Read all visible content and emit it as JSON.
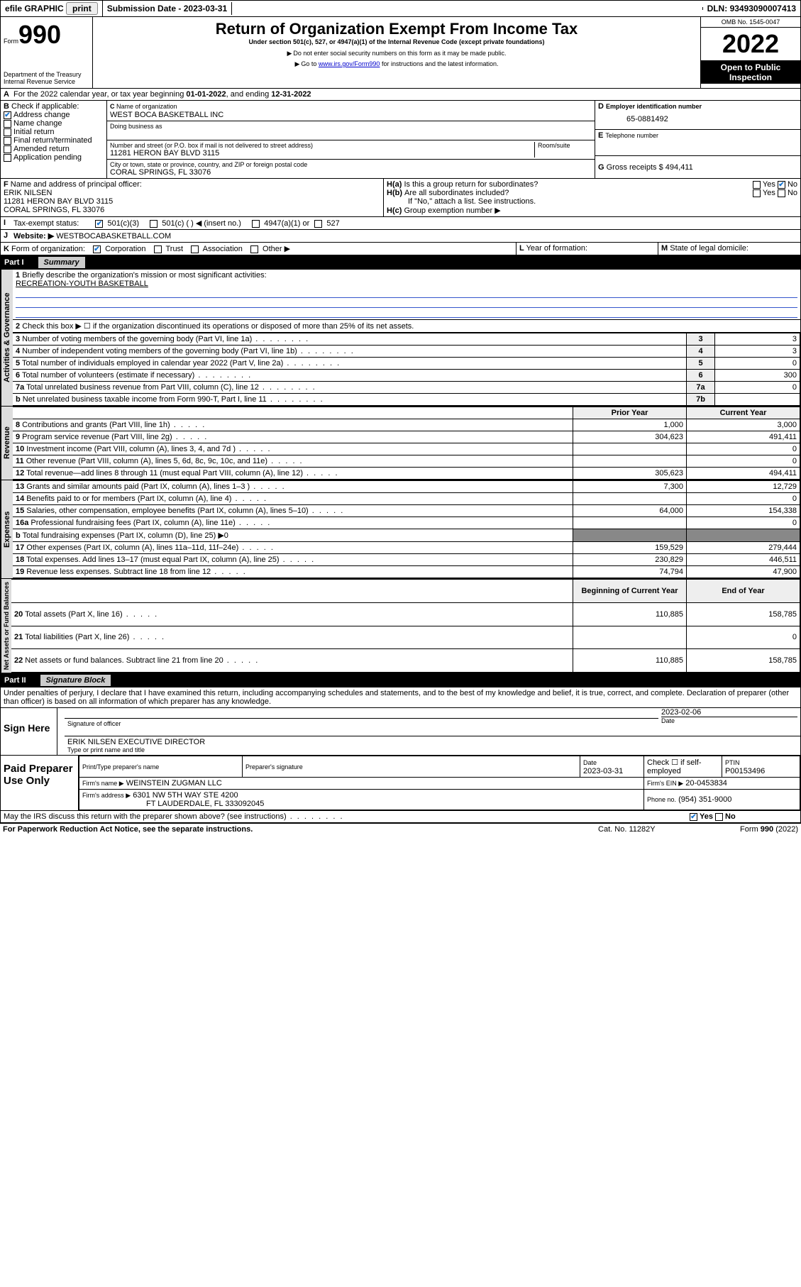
{
  "topbar": {
    "efile": "efile GRAPHIC",
    "print": "print",
    "sub_label": "Submission Date - ",
    "sub_date": "2023-03-31",
    "dln_label": "DLN: ",
    "dln": "93493090007413"
  },
  "header": {
    "form_prefix": "Form",
    "form_num": "990",
    "dept": "Department of the Treasury",
    "irs": "Internal Revenue Service",
    "title": "Return of Organization Exempt From Income Tax",
    "subtitle": "Under section 501(c), 527, or 4947(a)(1) of the Internal Revenue Code (except private foundations)",
    "note1": "Do not enter social security numbers on this form as it may be made public.",
    "note2_pre": "Go to ",
    "note2_link": "www.irs.gov/Form990",
    "note2_post": " for instructions and the latest information.",
    "omb": "OMB No. 1545-0047",
    "year": "2022",
    "open": "Open to Public Inspection"
  },
  "A": {
    "text_pre": "For the 2022 calendar year, or tax year beginning ",
    "begin": "01-01-2022",
    "mid": ", and ending ",
    "end": "12-31-2022"
  },
  "B": {
    "label": "Check if applicable:",
    "opts": [
      "Address change",
      "Name change",
      "Initial return",
      "Final return/terminated",
      "Amended return",
      "Application pending"
    ],
    "checked_idx": 0
  },
  "C": {
    "name_label": "Name of organization",
    "name": "WEST BOCA BASKETBALL INC",
    "dba_label": "Doing business as",
    "addr_label": "Number and street (or P.O. box if mail is not delivered to street address)",
    "room_label": "Room/suite",
    "addr": "11281 HERON BAY BLVD 3115",
    "city_label": "City or town, state or province, country, and ZIP or foreign postal code",
    "city": "CORAL SPRINGS, FL  33076"
  },
  "D": {
    "label": "Employer identification number",
    "value": "65-0881492"
  },
  "E": {
    "label": "Telephone number",
    "value": ""
  },
  "G": {
    "label": "Gross receipts $",
    "value": "494,411"
  },
  "F": {
    "label": "Name and address of principal officer:",
    "name": "ERIK NILSEN",
    "addr1": "11281 HERON BAY BLVD 3115",
    "addr2": "CORAL SPRINGS, FL  33076"
  },
  "H": {
    "a": "Is this a group return for subordinates?",
    "b": "Are all subordinates included?",
    "b_note": "If \"No,\" attach a list. See instructions.",
    "c": "Group exemption number ▶",
    "yes": "Yes",
    "no": "No"
  },
  "I": {
    "label": "Tax-exempt status:",
    "opts": [
      "501(c)(3)",
      "501(c) (  ) ◀ (insert no.)",
      "4947(a)(1) or",
      "527"
    ]
  },
  "J": {
    "label": "Website: ▶",
    "value": "WESTBOCABASKETBALL.COM"
  },
  "K": {
    "label": "Form of organization:",
    "opts": [
      "Corporation",
      "Trust",
      "Association",
      "Other ▶"
    ]
  },
  "L": {
    "label": "Year of formation:",
    "value": ""
  },
  "M": {
    "label": "State of legal domicile:",
    "value": ""
  },
  "partI": {
    "title": "Summary",
    "q1_label": "Briefly describe the organization's mission or most significant activities:",
    "q1_value": "RECREATION-YOUTH BASKETBALL",
    "q2": "Check this box ▶ ☐  if the organization discontinued its operations or disposed of more than 25% of its net assets.",
    "rows_gov": [
      {
        "n": "3",
        "t": "Number of voting members of the governing body (Part VI, line 1a)",
        "box": "3",
        "v": "3"
      },
      {
        "n": "4",
        "t": "Number of independent voting members of the governing body (Part VI, line 1b)",
        "box": "4",
        "v": "3"
      },
      {
        "n": "5",
        "t": "Total number of individuals employed in calendar year 2022 (Part V, line 2a)",
        "box": "5",
        "v": "0"
      },
      {
        "n": "6",
        "t": "Total number of volunteers (estimate if necessary)",
        "box": "6",
        "v": "300"
      },
      {
        "n": "7a",
        "t": "Total unrelated business revenue from Part VIII, column (C), line 12",
        "box": "7a",
        "v": "0"
      },
      {
        "n": "b",
        "t": "Net unrelated business taxable income from Form 990-T, Part I, line 11",
        "box": "7b",
        "v": ""
      }
    ],
    "col_prior": "Prior Year",
    "col_curr": "Current Year",
    "rows_rev": [
      {
        "n": "8",
        "t": "Contributions and grants (Part VIII, line 1h)",
        "p": "1,000",
        "c": "3,000"
      },
      {
        "n": "9",
        "t": "Program service revenue (Part VIII, line 2g)",
        "p": "304,623",
        "c": "491,411"
      },
      {
        "n": "10",
        "t": "Investment income (Part VIII, column (A), lines 3, 4, and 7d )",
        "p": "",
        "c": "0"
      },
      {
        "n": "11",
        "t": "Other revenue (Part VIII, column (A), lines 5, 6d, 8c, 9c, 10c, and 11e)",
        "p": "",
        "c": "0"
      },
      {
        "n": "12",
        "t": "Total revenue—add lines 8 through 11 (must equal Part VIII, column (A), line 12)",
        "p": "305,623",
        "c": "494,411"
      }
    ],
    "rows_exp": [
      {
        "n": "13",
        "t": "Grants and similar amounts paid (Part IX, column (A), lines 1–3 )",
        "p": "7,300",
        "c": "12,729"
      },
      {
        "n": "14",
        "t": "Benefits paid to or for members (Part IX, column (A), line 4)",
        "p": "",
        "c": "0"
      },
      {
        "n": "15",
        "t": "Salaries, other compensation, employee benefits (Part IX, column (A), lines 5–10)",
        "p": "64,000",
        "c": "154,338"
      },
      {
        "n": "16a",
        "t": "Professional fundraising fees (Part IX, column (A), line 11e)",
        "p": "",
        "c": "0"
      },
      {
        "n": "b",
        "t": "Total fundraising expenses (Part IX, column (D), line 25) ▶0",
        "p": null,
        "c": null
      },
      {
        "n": "17",
        "t": "Other expenses (Part IX, column (A), lines 11a–11d, 11f–24e)",
        "p": "159,529",
        "c": "279,444"
      },
      {
        "n": "18",
        "t": "Total expenses. Add lines 13–17 (must equal Part IX, column (A), line 25)",
        "p": "230,829",
        "c": "446,511"
      },
      {
        "n": "19",
        "t": "Revenue less expenses. Subtract line 18 from line 12",
        "p": "74,794",
        "c": "47,900"
      }
    ],
    "col_begin": "Beginning of Current Year",
    "col_end": "End of Year",
    "rows_net": [
      {
        "n": "20",
        "t": "Total assets (Part X, line 16)",
        "p": "110,885",
        "c": "158,785"
      },
      {
        "n": "21",
        "t": "Total liabilities (Part X, line 26)",
        "p": "",
        "c": "0"
      },
      {
        "n": "22",
        "t": "Net assets or fund balances. Subtract line 21 from line 20",
        "p": "110,885",
        "c": "158,785"
      }
    ],
    "vtabs": [
      "Activities & Governance",
      "Revenue",
      "Expenses",
      "Net Assets or Fund Balances"
    ]
  },
  "partII": {
    "title": "Signature Block",
    "decl": "Under penalties of perjury, I declare that I have examined this return, including accompanying schedules and statements, and to the best of my knowledge and belief, it is true, correct, and complete. Declaration of preparer (other than officer) is based on all information of which preparer has any knowledge.",
    "sign_here": "Sign Here",
    "sig_officer": "Signature of officer",
    "date_label": "Date",
    "sig_date": "2023-02-06",
    "officer_name": "ERIK NILSEN  EXECUTIVE DIRECTOR",
    "type_name": "Type or print name and title",
    "paid": "Paid Preparer Use Only",
    "pp_name_label": "Print/Type preparer's name",
    "pp_sig_label": "Preparer's signature",
    "pp_date_label": "Date",
    "pp_date": "2023-03-31",
    "pp_check": "Check ☐ if self-employed",
    "ptin_label": "PTIN",
    "ptin": "P00153496",
    "firm_name_label": "Firm's name    ▶",
    "firm_name": "WEINSTEIN ZUGMAN LLC",
    "firm_ein_label": "Firm's EIN ▶",
    "firm_ein": "20-0453834",
    "firm_addr_label": "Firm's address ▶",
    "firm_addr1": "6301 NW 5TH WAY STE 4200",
    "firm_addr2": "FT LAUDERDALE, FL  333092045",
    "phone_label": "Phone no.",
    "phone": "(954) 351-9000",
    "discuss": "May the IRS discuss this return with the preparer shown above? (see instructions)"
  },
  "footer": {
    "left": "For Paperwork Reduction Act Notice, see the separate instructions.",
    "mid": "Cat. No. 11282Y",
    "right": "Form 990 (2022)"
  },
  "colors": {
    "link": "#0000cc",
    "check": "#1976d2",
    "line": "#3355cc"
  }
}
